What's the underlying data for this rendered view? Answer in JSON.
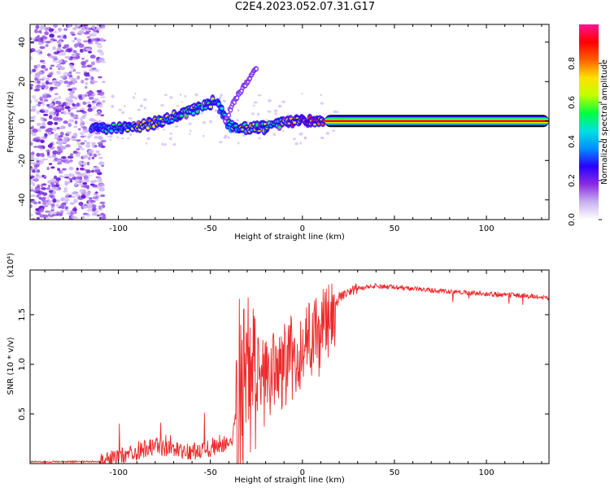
{
  "title": "C2E4.2023.052.07.31.G17",
  "chart_data": [
    {
      "type": "heatmap",
      "name": "spectrogram",
      "xlabel": "Height of straight line (km)",
      "ylabel": "Frequency (Hz)",
      "xlim": [
        -148,
        134
      ],
      "ylim": [
        -50,
        49
      ],
      "xticks": [
        -100,
        -50,
        0,
        50,
        100
      ],
      "yticks": [
        -40,
        -20,
        0,
        20,
        40
      ],
      "colorbar": {
        "label": "Normalized spectral amplitude",
        "range": [
          0,
          1
        ],
        "ticks": [
          "0.0",
          "0.2",
          "0.4",
          "0.6",
          "0.8"
        ],
        "colors": [
          "#ffffff",
          "#c8b0f0",
          "#8a2be2",
          "#2a00ff",
          "#0090ff",
          "#00e0e0",
          "#00ff40",
          "#c0ff00",
          "#ffe000",
          "#ff6000",
          "#ff0000",
          "#ff1493"
        ]
      },
      "signal_track": [
        {
          "x": -115,
          "y": -3,
          "amp": 0.35
        },
        {
          "x": -105,
          "y": -4,
          "amp": 0.5
        },
        {
          "x": -95,
          "y": -3,
          "amp": 0.6
        },
        {
          "x": -85,
          "y": -2,
          "amp": 0.7
        },
        {
          "x": -75,
          "y": 0,
          "amp": 0.6
        },
        {
          "x": -65,
          "y": 4,
          "amp": 0.6
        },
        {
          "x": -55,
          "y": 7,
          "amp": 0.6
        },
        {
          "x": -47,
          "y": 10,
          "amp": 0.5
        },
        {
          "x": -40,
          "y": -2,
          "amp": 0.5
        },
        {
          "x": -30,
          "y": -4,
          "amp": 0.7
        },
        {
          "x": -20,
          "y": -3,
          "amp": 0.6
        },
        {
          "x": -10,
          "y": -1,
          "amp": 0.7
        },
        {
          "x": 0,
          "y": 0,
          "amp": 0.8
        },
        {
          "x": 10,
          "y": 0,
          "amp": 0.9
        },
        {
          "x": 134,
          "y": 0,
          "amp": 1.0
        }
      ],
      "branch_track": [
        {
          "x": -42,
          "y": 0
        },
        {
          "x": -36,
          "y": 12
        },
        {
          "x": -30,
          "y": 20
        },
        {
          "x": -25,
          "y": 27
        }
      ]
    },
    {
      "type": "line",
      "name": "snr",
      "xlabel": "Height of straight line (km)",
      "ylabel": "SNR (10 * v/v)",
      "multiplier": "(x10⁴)",
      "xlim": [
        -148,
        134
      ],
      "ylim": [
        0,
        1.95
      ],
      "xticks": [
        -100,
        -50,
        0,
        50,
        100
      ],
      "yticks": [
        0.5,
        1.0,
        1.5
      ],
      "ytick_labels": [
        "0.5",
        "1.0",
        "1.5"
      ],
      "color": "#ee2a2a",
      "envelope": [
        {
          "x": -148,
          "y": 0.02
        },
        {
          "x": -110,
          "y": 0.02
        },
        {
          "x": -100,
          "y": 0.06
        },
        {
          "x": -90,
          "y": 0.12
        },
        {
          "x": -80,
          "y": 0.18
        },
        {
          "x": -60,
          "y": 0.12
        },
        {
          "x": -45,
          "y": 0.18
        },
        {
          "x": -38,
          "y": 0.22
        },
        {
          "x": -34,
          "y": 0.8
        },
        {
          "x": -30,
          "y": 0.9
        },
        {
          "x": -20,
          "y": 0.8
        },
        {
          "x": -10,
          "y": 1.0
        },
        {
          "x": 0,
          "y": 1.15
        },
        {
          "x": 10,
          "y": 1.3
        },
        {
          "x": 20,
          "y": 1.68
        },
        {
          "x": 30,
          "y": 1.76
        },
        {
          "x": 40,
          "y": 1.79
        },
        {
          "x": 60,
          "y": 1.76
        },
        {
          "x": 80,
          "y": 1.73
        },
        {
          "x": 100,
          "y": 1.71
        },
        {
          "x": 120,
          "y": 1.69
        },
        {
          "x": 134,
          "y": 1.67
        }
      ]
    }
  ]
}
